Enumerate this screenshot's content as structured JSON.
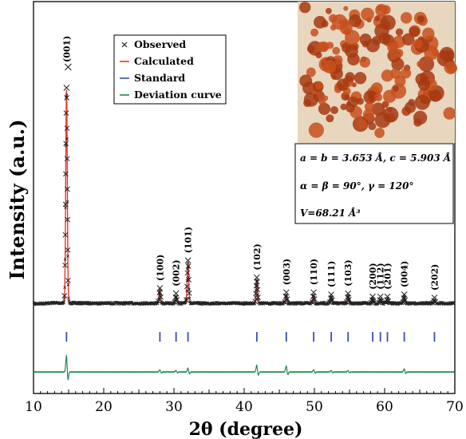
{
  "chart_data": {
    "type": "line",
    "xlabel": "2θ (degree)",
    "ylabel": "Intensity (a.u.)",
    "xlim": [
      10,
      70
    ],
    "x_ticks": [
      "10",
      "20",
      "30",
      "40",
      "50",
      "60",
      "70"
    ],
    "legend_placement": "top-left",
    "series": [
      {
        "name": "Observed",
        "marker": "x",
        "color": "#222222"
      },
      {
        "name": "Calculated",
        "color": "#e8352d"
      },
      {
        "name": "Standard",
        "color": "#3b4db3"
      },
      {
        "name": "Deviation curve",
        "color": "#1f8a4c"
      }
    ],
    "peaks": [
      {
        "position": 14.7,
        "label": "(001)",
        "intensity": 100
      },
      {
        "position": 28.0,
        "label": "(100)",
        "intensity": 6
      },
      {
        "position": 30.3,
        "label": "(002)",
        "intensity": 3.5
      },
      {
        "position": 32.0,
        "label": "(101)",
        "intensity": 19
      },
      {
        "position": 41.8,
        "label": "(102)",
        "intensity": 11
      },
      {
        "position": 46.0,
        "label": "(003)",
        "intensity": 4
      },
      {
        "position": 49.9,
        "label": "(110)",
        "intensity": 4
      },
      {
        "position": 52.4,
        "label": "(111)",
        "intensity": 3
      },
      {
        "position": 54.8,
        "label": "(103)",
        "intensity": 3.5
      },
      {
        "position": 58.3,
        "label": "(200)",
        "intensity": 2
      },
      {
        "position": 59.4,
        "label": "(112)",
        "intensity": 2
      },
      {
        "position": 60.4,
        "label": "(201)",
        "intensity": 2
      },
      {
        "position": 62.8,
        "label": "(004)",
        "intensity": 3
      },
      {
        "position": 67.1,
        "label": "(202)",
        "intensity": 1.5
      }
    ],
    "standard_positions": [
      14.7,
      28.0,
      30.3,
      32.0,
      41.8,
      46.0,
      49.9,
      52.4,
      54.8,
      58.3,
      59.4,
      60.4,
      62.8,
      67.1
    ],
    "deviation_peaks": [
      {
        "position": 14.7,
        "amplitude": 22
      },
      {
        "position": 28.0,
        "amplitude": 3
      },
      {
        "position": 30.3,
        "amplitude": 2
      },
      {
        "position": 32.0,
        "amplitude": 5
      },
      {
        "position": 41.8,
        "amplitude": 9
      },
      {
        "position": 46.0,
        "amplitude": 8
      },
      {
        "position": 49.9,
        "amplitude": 3
      },
      {
        "position": 52.4,
        "amplitude": 2
      },
      {
        "position": 54.8,
        "amplitude": 2
      },
      {
        "position": 62.8,
        "amplitude": 4
      }
    ]
  },
  "lattice": {
    "line1": "a = b = 3.653 Å, c = 5.903 Å",
    "line2": "α = β = 90°, γ = 120°",
    "line3": "V=68.21 Å³"
  },
  "colors": {
    "observed": "#222222",
    "calculated": "#e8352d",
    "standard": "#3b4db3",
    "deviation": "#1f8a4c",
    "photo_bg": "#e8d6bf",
    "photo_particles": "#c8501c"
  }
}
